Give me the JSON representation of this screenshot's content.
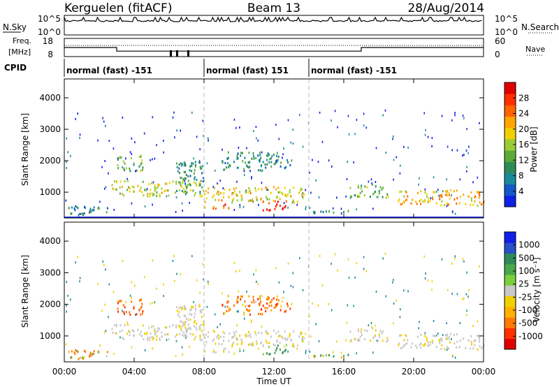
{
  "header": {
    "station": "Kerguelen (fitACF)",
    "beam": "Beam 13",
    "date": "28/Aug/2014"
  },
  "top_panels": {
    "nsky_label": "N.Sky",
    "nsearch_label": "N.Search",
    "noise_tick_hi": "10^5",
    "noise_tick_lo": "10^0",
    "freq_label": "Freq.",
    "freq_unit": "[MHz]",
    "freq_ticks": [
      "18",
      "8"
    ],
    "nave_label": "Nave",
    "nave_ticks": [
      "60",
      "0"
    ],
    "cpid_label": "CPID",
    "cpid_segments": [
      {
        "label": "normal (fast) -151",
        "start_hour": 0,
        "end_hour": 8
      },
      {
        "label": "normal (fast) 151",
        "start_hour": 8,
        "end_hour": 14
      },
      {
        "label": "normal (fast) -151",
        "start_hour": 14,
        "end_hour": 24
      }
    ],
    "frequency_series": {
      "hours": [
        0,
        3,
        3,
        17,
        17,
        24
      ],
      "mhz": [
        13,
        13,
        11,
        11,
        13,
        13
      ]
    }
  },
  "x_axis": {
    "title": "Time UT",
    "ticks": [
      "00:00",
      "04:00",
      "08:00",
      "12:00",
      "16:00",
      "20:00",
      "00:00"
    ],
    "range_hours": [
      0,
      24
    ],
    "separator_hours": [
      8,
      14
    ]
  },
  "y_axis": {
    "title": "Slant Range [km]",
    "ticks": [
      "1000",
      "2000",
      "3000",
      "4000"
    ],
    "range_km": [
      180,
      4600
    ]
  },
  "power_colorbar": {
    "title": "Power [dB]",
    "ticks": [
      "4",
      "8",
      "12",
      "16",
      "20",
      "24",
      "28"
    ],
    "colors": [
      "#1020e8",
      "#1558c8",
      "#1a8a9a",
      "#2e8b57",
      "#5aaa3a",
      "#9acd32",
      "#f0d000",
      "#ffa500",
      "#ff6400",
      "#ff3000",
      "#e00000"
    ]
  },
  "velocity_colorbar": {
    "title": "Velocity [m s⁻¹]",
    "ticks": [
      "1000",
      "500",
      "100",
      "25",
      "-25",
      "-100",
      "-500",
      "-1000"
    ],
    "colors": [
      "#1020e8",
      "#2a50c8",
      "#2e8b57",
      "#4aa84a",
      "#7ad03a",
      "#c8c8c8",
      "#f0d000",
      "#ffb000",
      "#ff7a00",
      "#ff3000",
      "#e00000"
    ]
  },
  "chart_data": {
    "type": "heatmap",
    "title": "Kerguelen (fitACF) Beam 13 28/Aug/2014",
    "xlabel": "Time UT",
    "ylabel": "Slant Range [km]",
    "xlim_hours": [
      0,
      24
    ],
    "ylim_km": [
      180,
      4600
    ],
    "regions": [
      {
        "t": [
          0.2,
          2.7
        ],
        "r": [
          300,
          600
        ],
        "power_db": 8,
        "velocity": -100
      },
      {
        "t": [
          2.7,
          8.0
        ],
        "r": [
          900,
          1400
        ],
        "power_db": 16,
        "velocity": 0
      },
      {
        "t": [
          3.0,
          4.5
        ],
        "r": [
          1700,
          2200
        ],
        "power_db": 12,
        "velocity": -300
      },
      {
        "t": [
          6.3,
          8.0
        ],
        "r": [
          1000,
          2000
        ],
        "power_db": 8,
        "velocity": 0
      },
      {
        "t": [
          7.9,
          9.4
        ],
        "r": [
          500,
          650
        ],
        "power_db": 24,
        "velocity": 0
      },
      {
        "t": [
          8.0,
          13.8
        ],
        "r": [
          700,
          1200
        ],
        "power_db": 18,
        "velocity": 0
      },
      {
        "t": [
          9.0,
          13.0
        ],
        "r": [
          1700,
          2300
        ],
        "power_db": 8,
        "velocity": -200
      },
      {
        "t": [
          11.3,
          12.7
        ],
        "r": [
          450,
          750
        ],
        "power_db": 28,
        "velocity": 150
      },
      {
        "t": [
          13.8,
          16.3
        ],
        "r": [
          330,
          450
        ],
        "power_db": 8,
        "velocity": 100
      },
      {
        "t": [
          16.3,
          18.5
        ],
        "r": [
          850,
          1300
        ],
        "power_db": 12,
        "velocity": 0
      },
      {
        "t": [
          19.0,
          24.0
        ],
        "r": [
          600,
          1100
        ],
        "power_db": 20,
        "velocity": 0
      }
    ],
    "ground_line_km": 200
  }
}
